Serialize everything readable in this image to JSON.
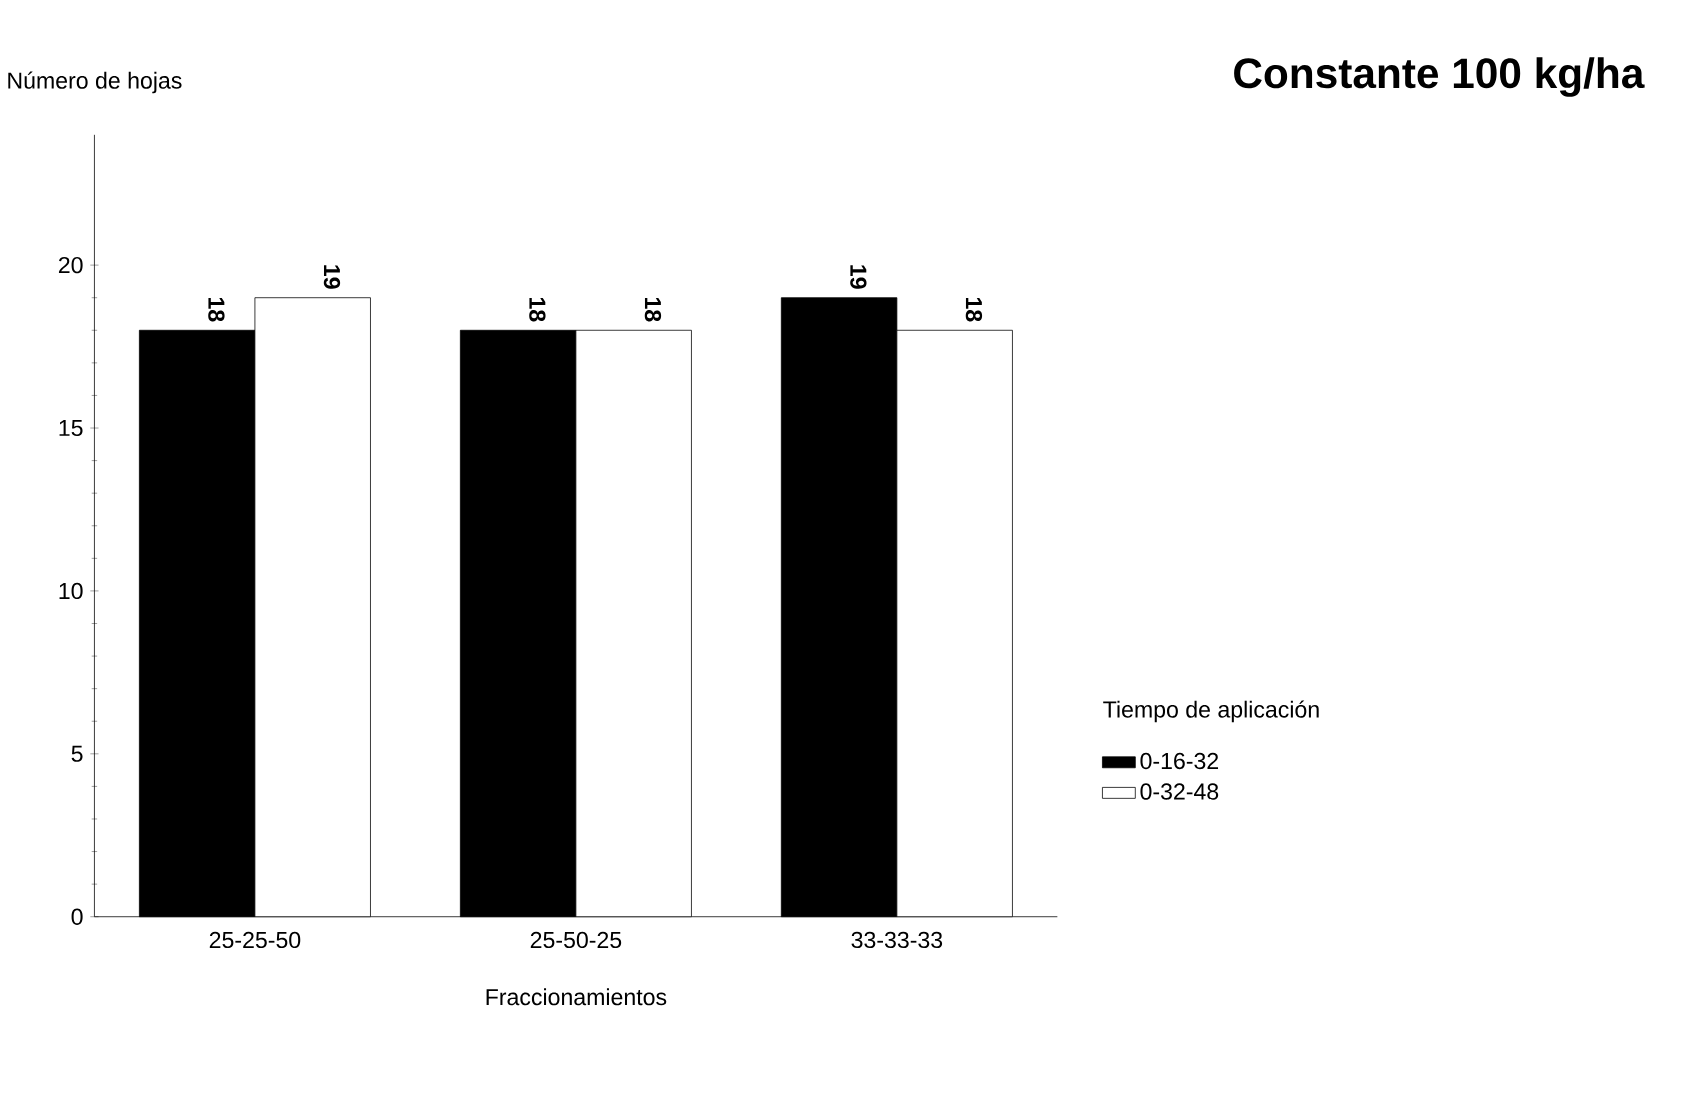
{
  "chart_data": {
    "type": "bar",
    "title": "Constante 100 kg/ha",
    "ylabel": "Número de hojas",
    "xlabel": "Fraccionamientos",
    "legend_title": "Tiempo de aplicación",
    "categories": [
      "25-25-50",
      "25-50-25",
      "33-33-33"
    ],
    "series": [
      {
        "name": "0-16-32",
        "color": "#000000",
        "values": [
          18,
          18,
          19
        ],
        "value_labels": [
          "18",
          "18",
          "19"
        ]
      },
      {
        "name": "0-32-48",
        "color": "#ffffff",
        "values": [
          19,
          18,
          18
        ],
        "value_labels": [
          "19",
          "18",
          "18"
        ]
      }
    ],
    "ylim": [
      0,
      24
    ],
    "yticks": [
      0,
      5,
      10,
      15,
      20
    ],
    "grid": false,
    "legend": "right"
  }
}
